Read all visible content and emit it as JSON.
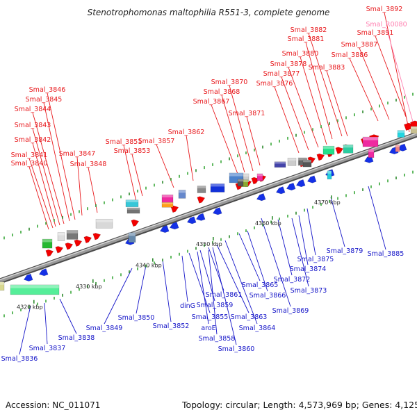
{
  "title": "Stenotrophomonas maltophilia R551-3, complete genome",
  "footer": {
    "accession": "Accession: NC_011071",
    "topology": "Topology: circular; Length: 4,573,969 bp; Genes: 4,125"
  },
  "colors": {
    "forward_label": "#e8181c",
    "reverse_label": "#1414c8",
    "rna_label": "#ff7fb0",
    "forward_gene": "#f20000",
    "reverse_gene": "#1430e6",
    "backbone": "#9a9a9a"
  },
  "scale_ticks": [
    "4320 kbp",
    "4330 kbp",
    "4340 kbp",
    "4350 kbp",
    "4360 kbp",
    "4370 kbp"
  ],
  "forward_labels": [
    "Smal_3840",
    "Smal_3841",
    "Smal_3842",
    "Smal_3843",
    "Smal_3844",
    "Smal_3845",
    "Smal_3846",
    "Smal_3847",
    "Smal_3848",
    "Smal_3851",
    "Smal_3853",
    "Smal_3857",
    "Smal_3862",
    "Smal_3867",
    "Smal_3868",
    "Smal_3870",
    "Smal_3871",
    "Smal_3876",
    "Smal_3877",
    "Smal_3878",
    "Smal_3880",
    "Smal_3881",
    "Smal_3882",
    "Smal_3883",
    "Smal_3886",
    "Smal_3887",
    "Smal_3891",
    "Smal_3892"
  ],
  "rna_labels": [
    "Smal_R0080"
  ],
  "reverse_labels": [
    "Smal_3836",
    "Smal_3837",
    "Smal_3838",
    "Smal_3849",
    "Smal_3850",
    "Smal_3852",
    "dinG",
    "Smal_3855",
    "aroE",
    "Smal_3858",
    "Smal_3859",
    "Smal_3860",
    "Smal_3861",
    "Smal_3863",
    "Smal_3864",
    "Smal_3865",
    "Smal_3866",
    "Smal_3869",
    "Smal_3872",
    "Smal_3873",
    "Smal_3874",
    "Smal_3875",
    "Smal_3879",
    "Smal_3885"
  ]
}
